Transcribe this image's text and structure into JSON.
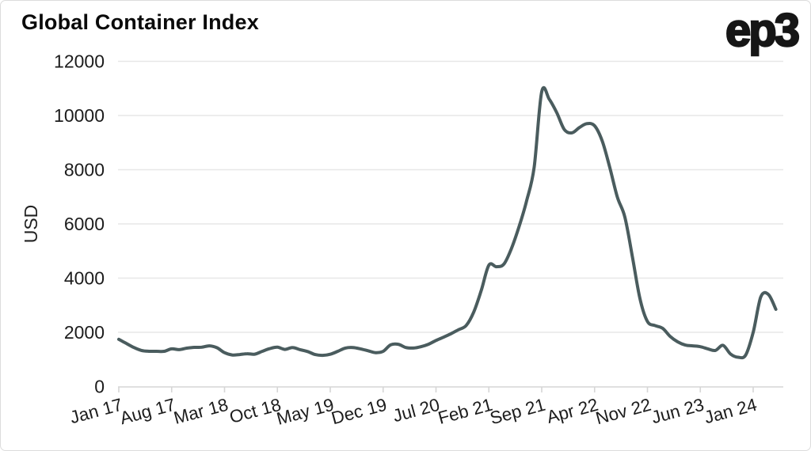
{
  "window": {
    "background": "#ffffff",
    "border_color": "#dcdcdc"
  },
  "header": {
    "title": "Global Container Index",
    "logo_text": "ep3"
  },
  "chart_data": {
    "type": "line",
    "title": "Global Container Index",
    "xlabel": "",
    "ylabel": "USD",
    "ylim": [
      0,
      12000
    ],
    "y_ticks": [
      0,
      2000,
      4000,
      6000,
      8000,
      10000,
      12000
    ],
    "x_tick_labels": [
      "Jan 17",
      "Aug 17",
      "Mar 18",
      "Oct 18",
      "May 19",
      "Dec 19",
      "Jul 20",
      "Feb 21",
      "Sep 21",
      "Apr 22",
      "Nov 22",
      "Jun 23",
      "Jan 24"
    ],
    "x_tick_every_n_points": 7,
    "x_start": "Jan 2017",
    "x_interval": "monthly",
    "x_end": "Apr 2024",
    "grid": "horizontal",
    "legend": "none",
    "line_color": "#4a5c5e",
    "line_width": 4,
    "grid_color": "#e7e7e7",
    "axis_color": "#d6d6d6",
    "tick_label_color": "#1c1c1c",
    "series": [
      {
        "name": "Global Container Index (USD)",
        "values": [
          1740,
          1590,
          1440,
          1330,
          1300,
          1300,
          1300,
          1390,
          1360,
          1415,
          1445,
          1450,
          1500,
          1430,
          1250,
          1165,
          1180,
          1210,
          1195,
          1300,
          1400,
          1450,
          1370,
          1440,
          1360,
          1290,
          1180,
          1150,
          1190,
          1300,
          1420,
          1440,
          1390,
          1320,
          1250,
          1300,
          1540,
          1560,
          1440,
          1420,
          1470,
          1560,
          1700,
          1820,
          1950,
          2100,
          2250,
          2750,
          3550,
          4480,
          4420,
          4520,
          5100,
          5900,
          6850,
          8100,
          10880,
          10600,
          10100,
          9480,
          9360,
          9560,
          9700,
          9620,
          9070,
          8100,
          7000,
          6260,
          4800,
          3250,
          2400,
          2250,
          2150,
          1850,
          1650,
          1530,
          1500,
          1470,
          1390,
          1330,
          1520,
          1200,
          1080,
          1160,
          2000,
          3300,
          3400,
          2850
        ]
      }
    ]
  }
}
